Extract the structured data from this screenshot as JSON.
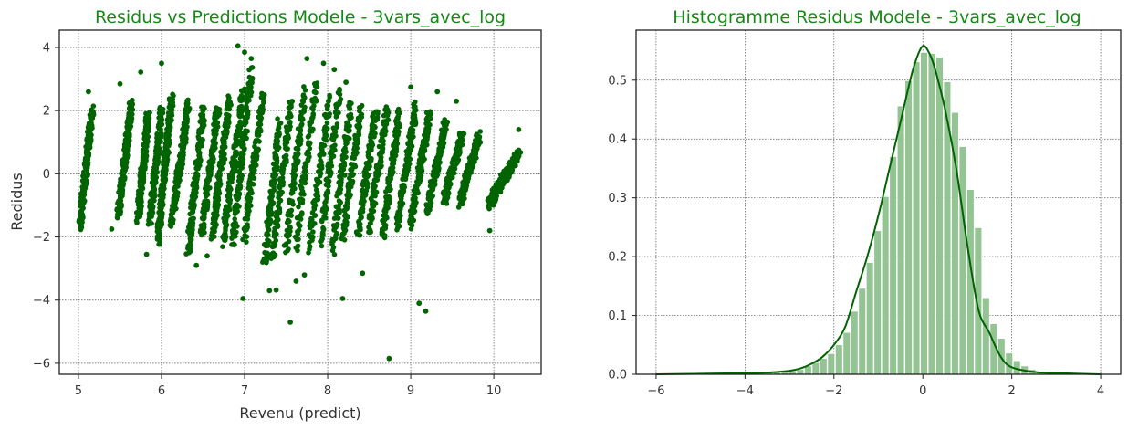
{
  "colors": {
    "accent": "#006400",
    "bar_fill": "#94c494",
    "title": "#138a13"
  },
  "chart_data": [
    {
      "type": "scatter",
      "title": "Residus vs Predictions Modele - 3vars_avec_log",
      "xlabel": "Revenu (predict)",
      "ylabel": "Redidus",
      "xlim": [
        4.77,
        10.57
      ],
      "ylim": [
        -6.35,
        4.55
      ],
      "xticks": [
        5,
        6,
        7,
        8,
        9,
        10
      ],
      "yticks": [
        -6,
        -4,
        -2,
        0,
        2,
        4
      ],
      "grid": true,
      "marker_color": "#006400",
      "strands": [
        [
          5.02,
          5.16,
          -1.7,
          2.0,
          0.85
        ],
        [
          5.48,
          5.64,
          -1.3,
          2.3,
          0.85
        ],
        [
          5.72,
          5.84,
          -1.4,
          1.9,
          0.75
        ],
        [
          5.86,
          6.0,
          -1.5,
          2.0,
          0.7
        ],
        [
          5.96,
          6.12,
          -2.1,
          2.4,
          0.8
        ],
        [
          6.12,
          6.32,
          -1.7,
          2.2,
          0.7
        ],
        [
          6.32,
          6.5,
          -2.5,
          2.0,
          0.65
        ],
        [
          6.48,
          6.68,
          -2.0,
          2.1,
          0.6
        ],
        [
          6.62,
          6.82,
          -1.9,
          2.4,
          0.6
        ],
        [
          6.74,
          6.98,
          -2.2,
          2.6,
          0.55
        ],
        [
          6.86,
          7.08,
          -2.3,
          3.3,
          0.5
        ],
        [
          7.0,
          7.22,
          -2.0,
          2.5,
          0.5
        ],
        [
          7.24,
          7.42,
          -2.9,
          1.6,
          0.45
        ],
        [
          7.34,
          7.56,
          -2.7,
          2.4,
          0.4
        ],
        [
          7.5,
          7.72,
          -2.4,
          2.6,
          0.4
        ],
        [
          7.62,
          7.86,
          -2.3,
          2.9,
          0.35
        ],
        [
          7.78,
          8.02,
          -2.4,
          2.4,
          0.35
        ],
        [
          7.92,
          8.14,
          -2.2,
          2.7,
          0.35
        ],
        [
          8.06,
          8.28,
          -2.4,
          2.2,
          0.4
        ],
        [
          8.18,
          8.4,
          -2.1,
          2.1,
          0.4
        ],
        [
          8.36,
          8.58,
          -2.0,
          2.0,
          0.45
        ],
        [
          8.5,
          8.72,
          -1.8,
          2.1,
          0.45
        ],
        [
          8.66,
          8.86,
          -2.0,
          1.9,
          0.5
        ],
        [
          8.84,
          9.06,
          -1.7,
          2.2,
          0.55
        ],
        [
          9.0,
          9.22,
          -1.6,
          1.9,
          0.6
        ],
        [
          9.2,
          9.42,
          -1.2,
          1.6,
          0.65
        ],
        [
          9.4,
          9.62,
          -0.9,
          1.3,
          0.7
        ],
        [
          9.6,
          9.82,
          -0.9,
          1.2,
          0.75
        ],
        [
          9.94,
          10.3,
          -1.0,
          0.7,
          0.95
        ]
      ],
      "outliers": [
        [
          6.92,
          4.05
        ],
        [
          7.0,
          3.85
        ],
        [
          7.08,
          3.65
        ],
        [
          7.75,
          3.65
        ],
        [
          7.95,
          3.5
        ],
        [
          8.08,
          3.3
        ],
        [
          8.22,
          2.9
        ],
        [
          6.0,
          3.5
        ],
        [
          5.5,
          2.85
        ],
        [
          5.12,
          2.6
        ],
        [
          5.75,
          3.22
        ],
        [
          9.0,
          2.75
        ],
        [
          9.32,
          2.6
        ],
        [
          9.55,
          2.3
        ],
        [
          6.98,
          -3.95
        ],
        [
          7.55,
          -4.7
        ],
        [
          8.18,
          -3.95
        ],
        [
          9.1,
          -4.1
        ],
        [
          9.18,
          -4.35
        ],
        [
          8.74,
          -5.85
        ],
        [
          7.3,
          -3.7
        ],
        [
          7.38,
          -3.68
        ],
        [
          8.42,
          -3.15
        ],
        [
          5.82,
          -2.55
        ],
        [
          6.42,
          -2.9
        ],
        [
          7.62,
          -3.4
        ],
        [
          7.72,
          -3.2
        ],
        [
          9.95,
          -1.8
        ],
        [
          10.3,
          1.4
        ],
        [
          5.4,
          -1.75
        ],
        [
          6.55,
          -2.6
        ]
      ]
    },
    {
      "type": "bar",
      "title": "Histogramme Residus Modele - 3vars_avec_log",
      "xlabel": "",
      "ylabel": "",
      "xlim": [
        -6.45,
        4.45
      ],
      "ylim": [
        0,
        0.585
      ],
      "xticks": [
        -6,
        -4,
        -2,
        0,
        2,
        4
      ],
      "yticks": [
        0.0,
        0.1,
        0.2,
        0.3,
        0.4,
        0.5
      ],
      "grid": true,
      "bin_start": -4.75,
      "bin_width": 0.174,
      "values": [
        0.001,
        0.001,
        0.001,
        0.002,
        0.002,
        0.002,
        0.003,
        0.003,
        0.003,
        0.004,
        0.006,
        0.008,
        0.014,
        0.02,
        0.027,
        0.035,
        0.05,
        0.071,
        0.107,
        0.146,
        0.19,
        0.244,
        0.302,
        0.37,
        0.456,
        0.499,
        0.531,
        0.547,
        0.545,
        0.539,
        0.497,
        0.445,
        0.387,
        0.314,
        0.249,
        0.13,
        0.086,
        0.061,
        0.036,
        0.023,
        0.014,
        0.008,
        0.005,
        0.003,
        0.002,
        0.002,
        0.001,
        0.001,
        0.001,
        0.001
      ],
      "kde": {
        "x": [
          -6.0,
          -5.0,
          -4.0,
          -3.5,
          -3.0,
          -2.75,
          -2.5,
          -2.25,
          -2.0,
          -1.75,
          -1.5,
          -1.25,
          -1.0,
          -0.75,
          -0.5,
          -0.25,
          -0.1,
          0.0,
          0.1,
          0.25,
          0.5,
          0.75,
          1.0,
          1.25,
          1.5,
          1.75,
          2.0,
          2.5,
          3.0,
          3.5,
          4.0
        ],
        "y": [
          0.0,
          0.001,
          0.002,
          0.003,
          0.006,
          0.01,
          0.018,
          0.03,
          0.05,
          0.08,
          0.14,
          0.2,
          0.27,
          0.35,
          0.43,
          0.51,
          0.545,
          0.558,
          0.552,
          0.525,
          0.45,
          0.35,
          0.22,
          0.11,
          0.07,
          0.03,
          0.012,
          0.004,
          0.002,
          0.001,
          0.0
        ]
      },
      "line_color": "#006400"
    }
  ]
}
